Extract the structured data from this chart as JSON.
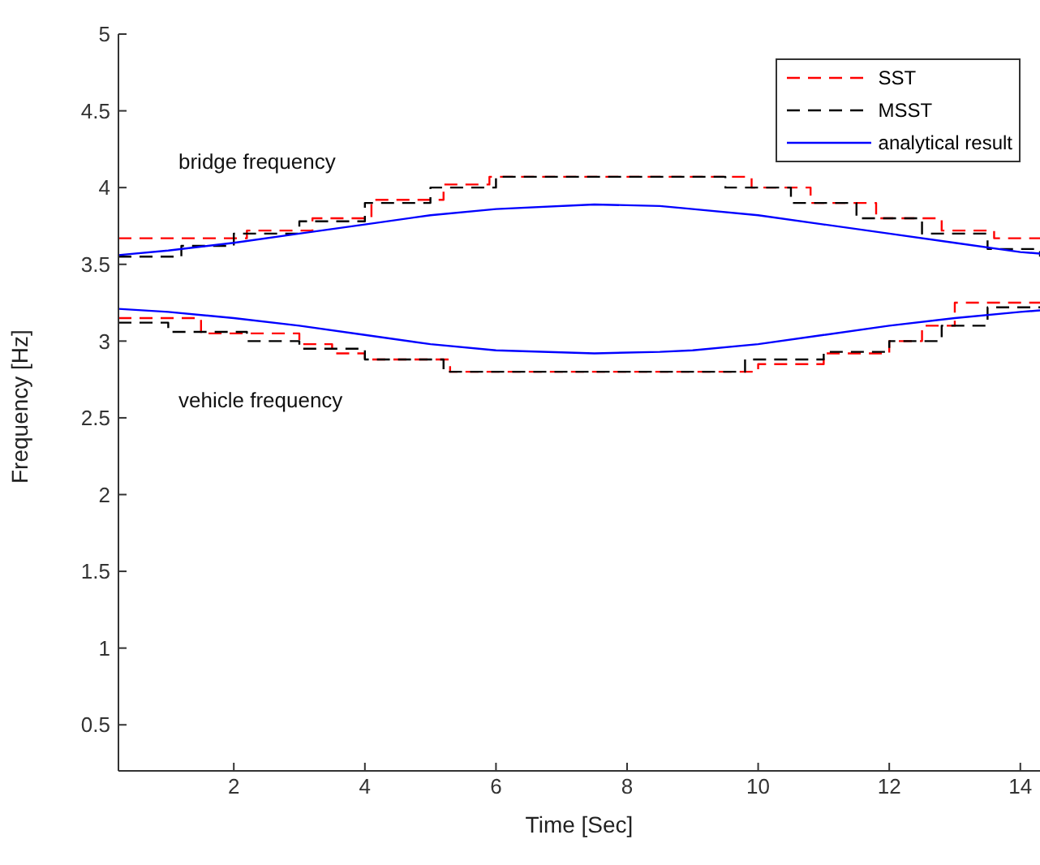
{
  "chart_data": {
    "type": "line",
    "xlabel": "Time [Sec]",
    "ylabel": "Frequency [Hz]",
    "xlim": [
      0.24,
      14.3
    ],
    "xticks": [
      2,
      4,
      6,
      8,
      10,
      12,
      14
    ],
    "ylim": [
      0.2,
      5
    ],
    "yticks": [
      0.5,
      1,
      1.5,
      2,
      2.5,
      3,
      3.5,
      4,
      4.5,
      5
    ],
    "grid": false,
    "legend": "top right",
    "marker": "none",
    "annotations": [
      "bridge frequency",
      "vehicle frequency"
    ],
    "series": [
      {
        "name": "SST",
        "type": "step",
        "line_style": "dashed",
        "color": "#ff0000",
        "x": [
          0.24,
          2.2,
          3.2,
          4.1,
          5.2,
          5.9,
          9.9,
          10.8,
          11.8,
          12.8,
          13.6,
          14.3
        ],
        "values": [
          3.67,
          3.72,
          3.8,
          3.92,
          4.02,
          4.07,
          4.0,
          3.9,
          3.8,
          3.72,
          3.67,
          3.67
        ]
      },
      {
        "name": "MSST",
        "type": "step",
        "line_style": "dashed",
        "color": "#000000",
        "x": [
          0.24,
          1.2,
          2.0,
          3.0,
          4.0,
          5.0,
          6.0,
          9.5,
          10.5,
          11.5,
          12.5,
          13.5,
          14.3
        ],
        "values": [
          3.55,
          3.62,
          3.7,
          3.78,
          3.9,
          4.0,
          4.07,
          4.0,
          3.9,
          3.8,
          3.7,
          3.6,
          3.55
        ]
      },
      {
        "name": "analytical result",
        "type": "line",
        "line_style": "solid",
        "color": "#0000ff",
        "x": [
          0.24,
          1,
          2,
          3,
          4,
          5,
          6,
          7.5,
          8.5,
          9,
          10,
          11,
          12,
          13,
          14,
          14.3
        ],
        "values": [
          3.56,
          3.59,
          3.64,
          3.7,
          3.76,
          3.82,
          3.86,
          3.89,
          3.88,
          3.86,
          3.82,
          3.76,
          3.7,
          3.64,
          3.58,
          3.57
        ]
      },
      {
        "type": "step",
        "line_style": "dashed",
        "color": "#ff0000",
        "x": [
          0.24,
          1.5,
          3.0,
          3.5,
          4.0,
          5.3,
          10.0,
          11.0,
          12.0,
          12.5,
          13.0,
          14.3
        ],
        "values": [
          3.15,
          3.05,
          2.98,
          2.92,
          2.88,
          2.8,
          2.85,
          2.92,
          3.0,
          3.1,
          3.25,
          3.25
        ]
      },
      {
        "type": "step",
        "line_style": "dashed",
        "color": "#000000",
        "x": [
          0.24,
          1.0,
          2.2,
          3.0,
          4.0,
          5.2,
          9.8,
          11.0,
          12.0,
          12.8,
          13.5,
          14.3
        ],
        "values": [
          3.12,
          3.06,
          3.0,
          2.95,
          2.88,
          2.8,
          2.88,
          2.93,
          3.0,
          3.1,
          3.22,
          3.22
        ]
      },
      {
        "type": "line",
        "line_style": "solid",
        "color": "#0000ff",
        "x": [
          0.24,
          1,
          2,
          3,
          4,
          5,
          6,
          7.5,
          8.5,
          9,
          10,
          11,
          12,
          13,
          14,
          14.3
        ],
        "values": [
          3.21,
          3.19,
          3.15,
          3.1,
          3.04,
          2.98,
          2.94,
          2.92,
          2.93,
          2.94,
          2.98,
          3.04,
          3.1,
          3.15,
          3.19,
          3.2
        ]
      }
    ]
  }
}
